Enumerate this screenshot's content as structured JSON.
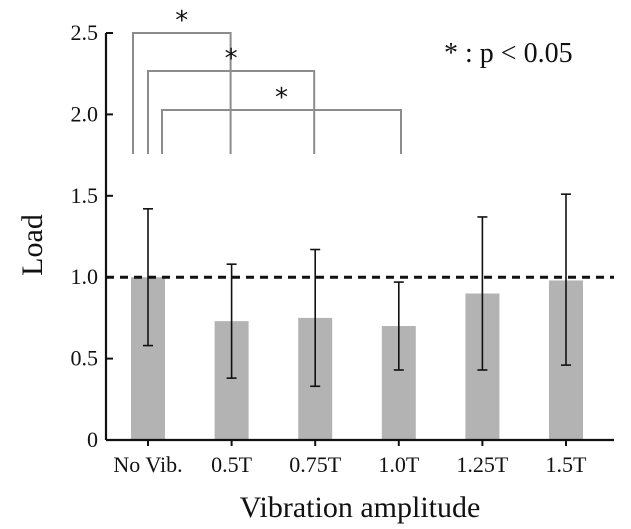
{
  "chart_data": {
    "type": "bar",
    "categories": [
      "No Vib.",
      "0.5T",
      "0.75T",
      "1.0T",
      "1.25T",
      "1.5T"
    ],
    "values": [
      1.0,
      0.73,
      0.75,
      0.7,
      0.9,
      0.98
    ],
    "error_low": [
      0.58,
      0.38,
      0.33,
      0.43,
      0.43,
      0.46
    ],
    "error_high": [
      1.42,
      1.08,
      1.17,
      0.97,
      1.37,
      1.51
    ],
    "xlabel": "Vibration amplitude",
    "ylabel": "Load",
    "ylim": [
      0,
      2.5
    ],
    "yticks": [
      0,
      0.5,
      1.0,
      1.5,
      2.0,
      2.5
    ],
    "ytick_labels": [
      "0",
      "0.5",
      "1.0",
      "1.5",
      "2.0",
      "2.5"
    ],
    "reference_line": {
      "value": 1.0,
      "style": "dashed"
    },
    "significance": [
      {
        "from": "No Vib.",
        "to": "0.5T",
        "label": "*"
      },
      {
        "from": "No Vib.",
        "to": "0.75T",
        "label": "*"
      },
      {
        "from": "No Vib.",
        "to": "1.0T",
        "label": "*"
      }
    ],
    "annotation": "* : p < 0.05",
    "bar_color": "#b3b3b3",
    "bracket_color": "#8c8c8c",
    "grid": false
  }
}
